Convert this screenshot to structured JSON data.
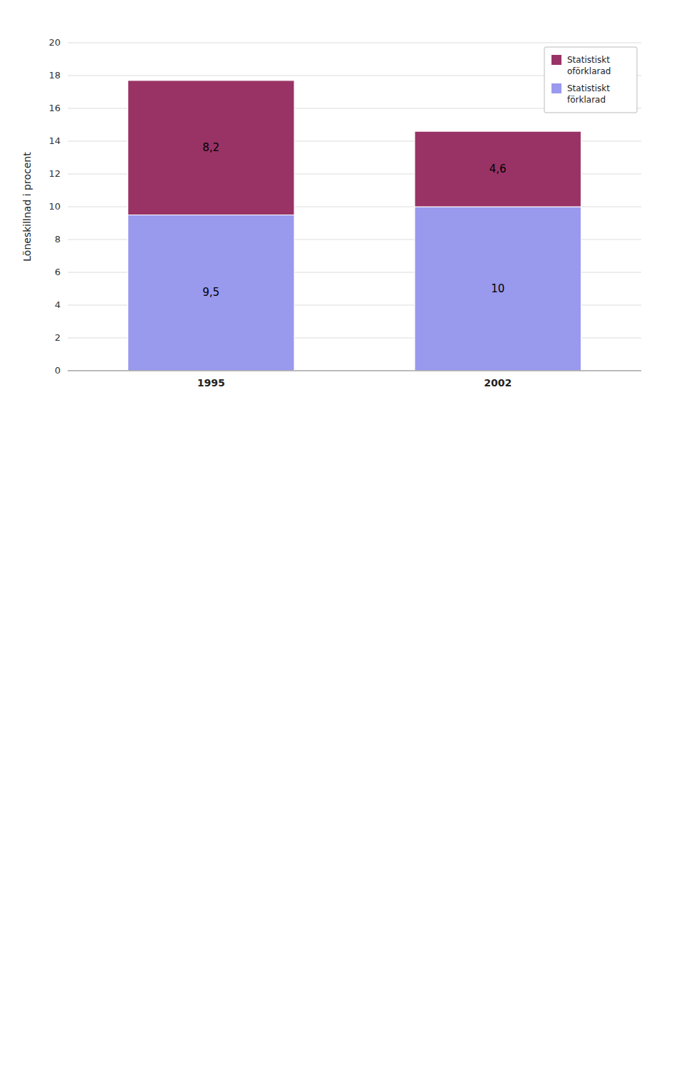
{
  "chart_data": {
    "type": "bar",
    "stacked": true,
    "categories": [
      "1995",
      "2002"
    ],
    "series": [
      {
        "name": "Statistiskt\nförklarad",
        "color": "#9999EE",
        "values": [
          9.5,
          10.0
        ],
        "value_labels": [
          "9,5",
          "10"
        ]
      },
      {
        "name": "Statistiskt\noförklarad",
        "color": "#993366",
        "values": [
          8.2,
          4.6
        ],
        "value_labels": [
          "8,2",
          "4,6"
        ]
      }
    ],
    "ylabel": "Löneskillnad i procent",
    "ylim": [
      0,
      20
    ],
    "yticks": [
      0,
      2,
      4,
      6,
      8,
      10,
      12,
      14,
      16,
      18,
      20
    ],
    "grid": true,
    "legend": "upper right",
    "data_labels": true
  }
}
